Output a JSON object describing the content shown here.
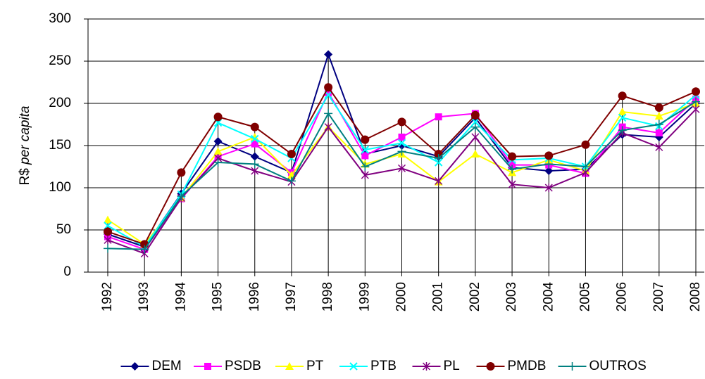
{
  "chart_data": {
    "type": "line",
    "y_label_parts": [
      "R$",
      "per capita"
    ],
    "categories": [
      "1992",
      "1993",
      "1994",
      "1995",
      "1996",
      "1997",
      "1998",
      "1999",
      "2000",
      "2001",
      "2002",
      "2003",
      "2004",
      "2005",
      "2006",
      "2007",
      "2008"
    ],
    "ylim": [
      0,
      300
    ],
    "yticks": [
      0,
      50,
      100,
      150,
      200,
      250,
      300
    ],
    "grid": true,
    "legend": "bottom",
    "series": [
      {
        "name": "DEM",
        "color": "#000080",
        "marker": "diamond",
        "values": [
          45,
          30,
          93,
          155,
          137,
          118,
          258,
          140,
          150,
          137,
          183,
          124,
          120,
          122,
          163,
          160,
          200
        ]
      },
      {
        "name": "PSDB",
        "color": "#FF00FF",
        "marker": "square",
        "values": [
          42,
          27,
          87,
          137,
          152,
          118,
          213,
          138,
          160,
          184,
          188,
          127,
          127,
          117,
          172,
          165,
          205
        ]
      },
      {
        "name": "PT",
        "color": "#FFFF00",
        "marker": "triangle",
        "values": [
          62,
          33,
          88,
          143,
          160,
          115,
          172,
          128,
          140,
          107,
          140,
          118,
          133,
          120,
          190,
          185,
          200
        ]
      },
      {
        "name": "PTB",
        "color": "#00FFFF",
        "marker": "x",
        "values": [
          55,
          30,
          92,
          177,
          158,
          135,
          210,
          145,
          153,
          130,
          178,
          133,
          135,
          125,
          183,
          173,
          210
        ]
      },
      {
        "name": "PL",
        "color": "#800080",
        "marker": "star",
        "values": [
          38,
          22,
          88,
          135,
          120,
          107,
          172,
          115,
          123,
          108,
          160,
          104,
          100,
          118,
          165,
          148,
          193
        ]
      },
      {
        "name": "PMDB",
        "color": "#800000",
        "marker": "circle",
        "values": [
          48,
          33,
          118,
          184,
          172,
          140,
          219,
          157,
          178,
          140,
          186,
          137,
          138,
          151,
          209,
          195,
          214
        ]
      },
      {
        "name": "OUTROS",
        "color": "#008080",
        "marker": "plus",
        "values": [
          28,
          27,
          90,
          130,
          128,
          108,
          188,
          125,
          143,
          135,
          172,
          122,
          128,
          125,
          168,
          175,
          202
        ]
      }
    ]
  }
}
